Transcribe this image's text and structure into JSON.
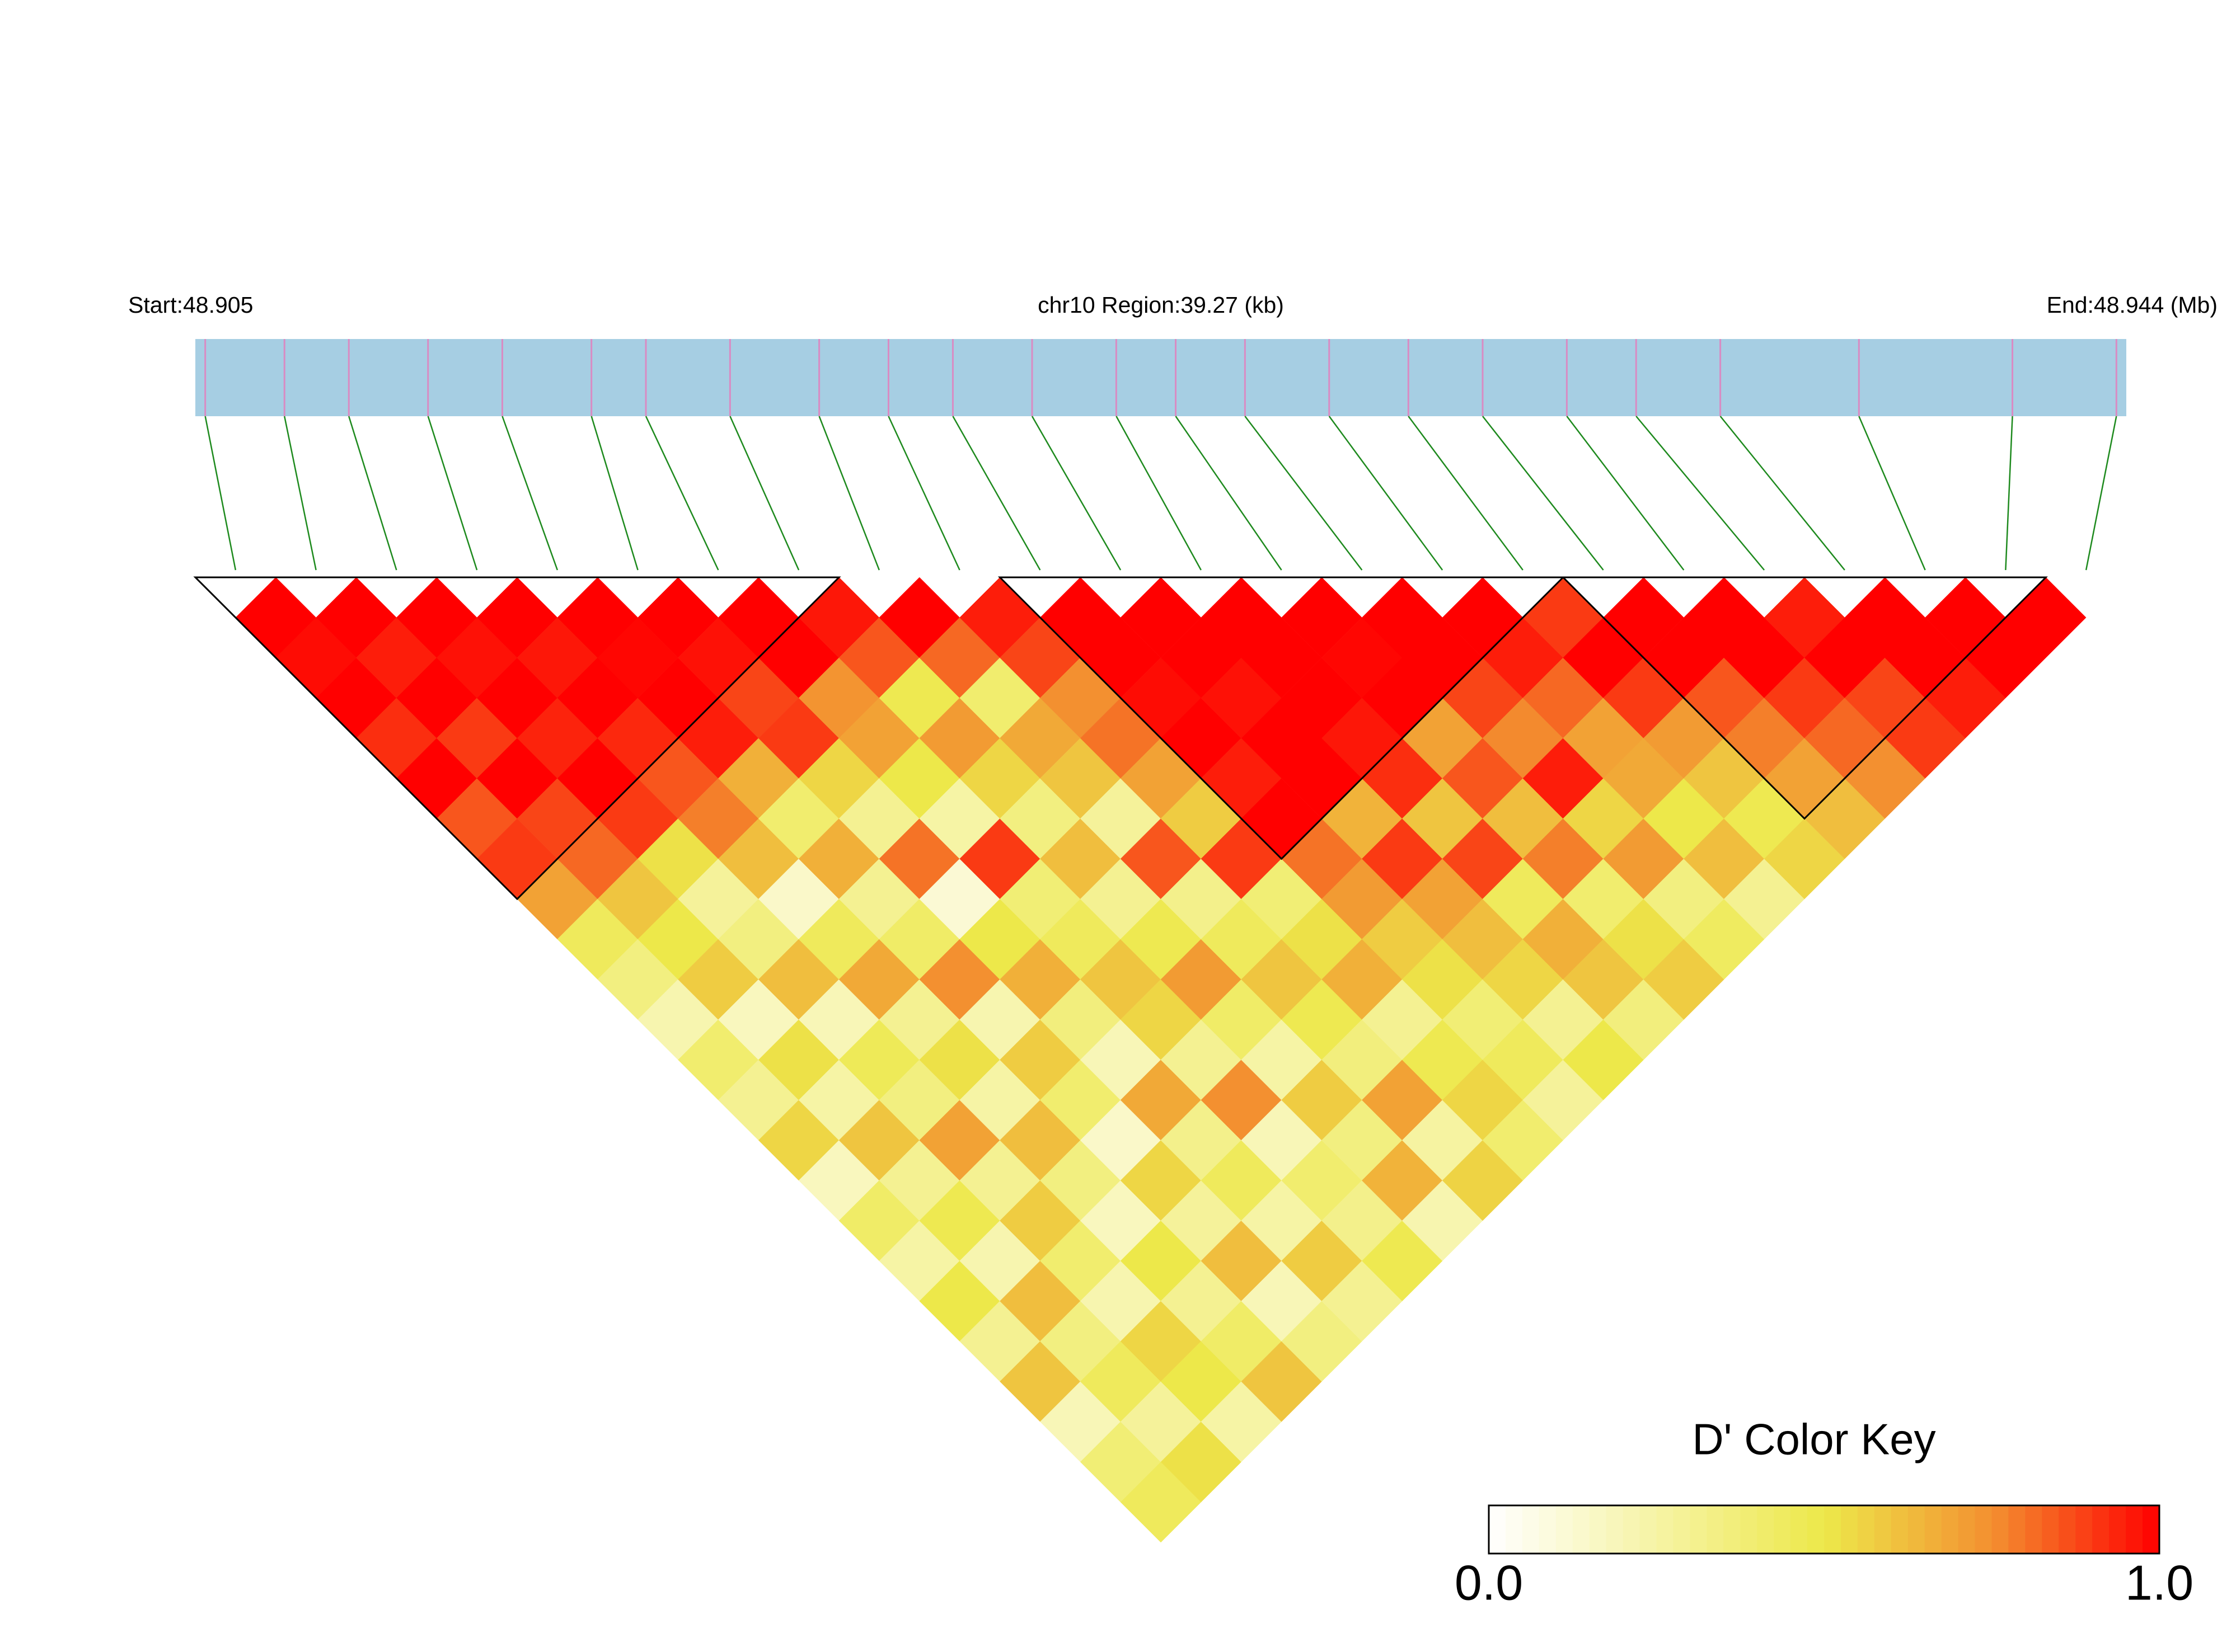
{
  "chart_data": {
    "type": "ld-heatmap",
    "start": {
      "value": 48.905,
      "label": "Start:48.905"
    },
    "region": {
      "value": 39.27,
      "label": "chr10 Region:39.27 (kb)"
    },
    "end": {
      "value": 48.944,
      "label": "End:48.944 (Mb)"
    },
    "snp_positions": [
      48.9052,
      48.9068,
      48.9081,
      48.9097,
      48.9112,
      48.913,
      48.9141,
      48.9158,
      48.9176,
      48.919,
      48.9203,
      48.9219,
      48.9236,
      48.9248,
      48.9262,
      48.9279,
      48.9295,
      48.931,
      48.9327,
      48.9341,
      48.9358,
      48.9386,
      48.9417,
      48.9438
    ],
    "ld": [
      [
        1.0
      ],
      [
        0.98,
        1.0
      ],
      [
        1.0,
        0.95,
        1.0
      ],
      [
        0.92,
        1.0,
        0.97,
        1.0
      ],
      [
        1.0,
        0.9,
        1.0,
        0.96,
        1.0
      ],
      [
        0.85,
        1.0,
        0.94,
        1.0,
        0.99,
        1.0
      ],
      [
        0.9,
        0.88,
        1.0,
        0.93,
        1.0,
        0.97,
        1.0
      ],
      [
        0.7,
        0.82,
        0.9,
        0.85,
        0.95,
        0.88,
        1.0,
        0.96
      ],
      [
        0.45,
        0.6,
        0.52,
        0.78,
        0.66,
        0.9,
        0.74,
        0.85,
        1.0
      ],
      [
        0.35,
        0.5,
        0.28,
        0.62,
        0.4,
        0.55,
        0.7,
        0.48,
        0.82,
        0.95
      ],
      [
        0.22,
        0.58,
        0.35,
        0.15,
        0.66,
        0.3,
        0.5,
        0.72,
        0.4,
        0.88,
        1.0
      ],
      [
        0.4,
        0.18,
        0.62,
        0.45,
        0.3,
        0.8,
        0.25,
        0.55,
        0.68,
        0.75,
        1.0,
        1.0
      ],
      [
        0.3,
        0.52,
        0.2,
        0.68,
        0.42,
        0.12,
        0.9,
        0.35,
        0.6,
        0.8,
        0.98,
        1.0,
        1.0
      ],
      [
        0.55,
        0.25,
        0.46,
        0.3,
        0.75,
        0.5,
        0.38,
        0.62,
        0.28,
        0.7,
        1.0,
        0.97,
        1.0,
        1.0
      ],
      [
        0.18,
        0.6,
        0.35,
        0.52,
        0.22,
        0.66,
        0.45,
        0.3,
        0.85,
        0.58,
        0.95,
        1.0,
        1.0,
        0.99,
        1.0
      ],
      [
        0.42,
        0.3,
        0.7,
        0.25,
        0.58,
        0.36,
        0.6,
        0.48,
        0.32,
        0.9,
        1.0,
        1.0,
        0.96,
        1.0,
        1.0,
        1.0
      ],
      [
        0.25,
        0.48,
        0.3,
        0.62,
        0.4,
        0.2,
        0.55,
        0.72,
        0.45,
        0.38,
        0.8,
        0.65,
        0.92,
        0.7,
        0.88,
        0.95,
        0.9
      ],
      [
        0.5,
        0.22,
        0.58,
        0.35,
        0.15,
        0.68,
        0.3,
        0.42,
        0.6,
        0.52,
        0.72,
        0.9,
        0.6,
        0.85,
        0.76,
        0.82,
        1.0,
        1.0
      ],
      [
        0.3,
        0.62,
        0.4,
        0.18,
        0.55,
        0.32,
        0.75,
        0.25,
        0.48,
        0.66,
        0.58,
        0.7,
        0.88,
        0.62,
        0.95,
        0.7,
        0.9,
        1.0,
        1.0
      ],
      [
        0.6,
        0.35,
        0.22,
        0.5,
        0.28,
        0.45,
        0.2,
        0.58,
        0.36,
        0.3,
        0.52,
        0.62,
        0.45,
        0.78,
        0.55,
        0.68,
        0.72,
        0.85,
        1.0,
        0.95
      ],
      [
        0.2,
        0.45,
        0.55,
        0.3,
        0.62,
        0.25,
        0.4,
        0.35,
        0.7,
        0.48,
        0.38,
        0.55,
        0.66,
        0.4,
        0.72,
        0.5,
        0.6,
        0.78,
        0.9,
        1.0,
        1.0
      ],
      [
        0.38,
        0.28,
        0.5,
        0.42,
        0.2,
        0.58,
        0.32,
        0.65,
        0.26,
        0.55,
        0.45,
        0.3,
        0.6,
        0.52,
        0.35,
        0.62,
        0.48,
        0.7,
        0.82,
        0.88,
        1.0,
        1.0
      ],
      [
        0.45,
        0.52,
        0.25,
        0.6,
        0.35,
        0.3,
        0.48,
        0.22,
        0.56,
        0.4,
        0.28,
        0.5,
        0.36,
        0.58,
        0.44,
        0.3,
        0.55,
        0.62,
        0.75,
        0.9,
        0.95,
        1.0,
        1.0
      ]
    ],
    "blocks": [
      [
        0,
        7
      ],
      [
        10,
        16
      ],
      [
        17,
        22
      ]
    ],
    "bar_color": "#a6cee3",
    "snp_line_color": "#d98bc3",
    "connector_color": "#1e8a1e",
    "color_key": {
      "title": "D' Color Key",
      "ticks": [
        {
          "value": 0,
          "label": "0.0"
        },
        {
          "value": 1,
          "label": "1.0"
        }
      ],
      "stops": [
        {
          "value": 0,
          "color": "#ffffff"
        },
        {
          "value": 0.5,
          "color": "#ede84a"
        },
        {
          "value": 0.75,
          "color": "#f39030"
        },
        {
          "value": 1,
          "color": "#ff0000"
        }
      ]
    }
  }
}
